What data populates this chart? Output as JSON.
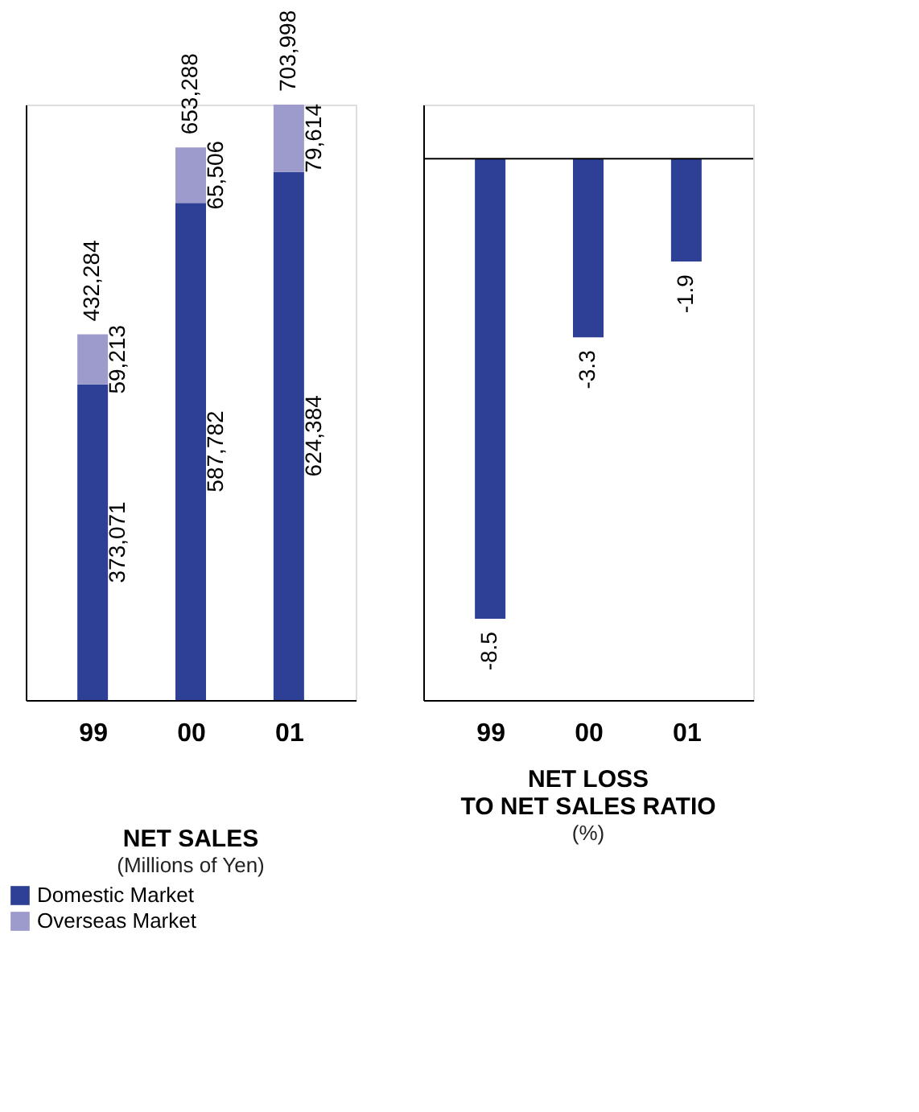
{
  "chart_data": [
    {
      "type": "bar",
      "title": "NET SALES",
      "subtitle": "(Millions of Yen)",
      "categories": [
        "99",
        "00",
        "01"
      ],
      "stacked": true,
      "series": [
        {
          "name": "Domestic Market",
          "color": "#2e3f96",
          "values": [
            373071,
            587782,
            624384
          ],
          "value_labels": [
            "373,071",
            "587,782",
            "624,384"
          ]
        },
        {
          "name": "Overseas Market",
          "color": "#9d9bcb",
          "values": [
            59213,
            65506,
            79614
          ],
          "value_labels": [
            "59,213",
            "65,506",
            "79,614"
          ]
        }
      ],
      "totals": [
        "432,284",
        "653,288",
        "703,998"
      ],
      "tick_labels": "x",
      "grid": false,
      "legend": "bottom left"
    },
    {
      "type": "bar",
      "title": "NET LOSS TO NET SALES RATIO",
      "subtitle": "(%)",
      "categories": [
        "99",
        "00",
        "01"
      ],
      "series": [
        {
          "color": "#2e3f96",
          "values": [
            -8.5,
            -3.3,
            -1.9
          ]
        }
      ],
      "data_labels": true,
      "ylim": [
        -10,
        1
      ],
      "tick_labels": "x",
      "grid": false,
      "ref_lines": [
        {
          "axis": "y",
          "value": 0,
          "label": null
        }
      ]
    }
  ]
}
